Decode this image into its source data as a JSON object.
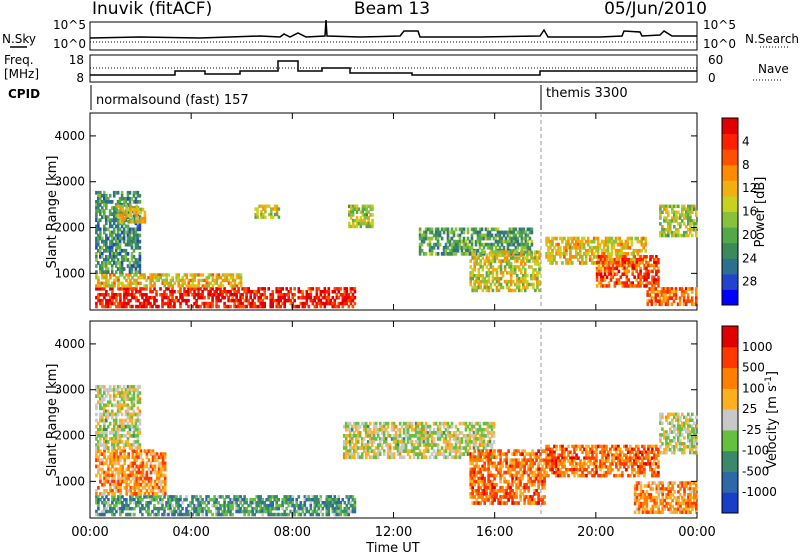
{
  "header": {
    "station": "Inuvik (fitACF)",
    "beam": "Beam 13",
    "date": "05/Jun/2010"
  },
  "noise_panel": {
    "left_label": "N.Sky",
    "right_label": "N.Search",
    "left_ticks": [
      "10^5",
      "10^0"
    ],
    "right_ticks": [
      "10^5",
      "10^0"
    ]
  },
  "freq_panel": {
    "left_label_line1": "Freq.",
    "left_label_line2": "[MHz]",
    "right_label": "Nave",
    "left_ticks": [
      "18",
      "8"
    ],
    "right_ticks": [
      "60",
      "0"
    ]
  },
  "cpid_panel": {
    "label": "CPID",
    "programs": [
      {
        "name": "normalsound (fast) 157",
        "start_hour": 0
      },
      {
        "name": "themis 3300",
        "start_hour": 18
      }
    ]
  },
  "colors": {
    "power_scale": [
      "#0000ff",
      "#2244cc",
      "#2e6e8e",
      "#3a8a5a",
      "#55a84a",
      "#88c23a",
      "#c8d020",
      "#f0b010",
      "#ff8c00",
      "#ff5000",
      "#ff2000",
      "#e00000"
    ],
    "velocity_scale": [
      "#1a3ec8",
      "#2f68a8",
      "#3a8a6a",
      "#66c040",
      "#c8c8c8",
      "#ffb020",
      "#ff7f00",
      "#ff3800",
      "#e00000"
    ]
  },
  "chart_data": [
    {
      "type": "heatmap",
      "title": "Power",
      "ylabel": "Slant Range [km]",
      "xlabel": "Time UT",
      "xlim_hours": [
        0,
        24
      ],
      "ylim": [
        200,
        4500
      ],
      "y_ticks": [
        1000,
        2000,
        3000,
        4000
      ],
      "x_ticks": [
        "00:00",
        "04:00",
        "08:00",
        "12:00",
        "16:00",
        "20:00",
        "00:00"
      ],
      "colorbar": {
        "label": "Power [dB]",
        "ticks": [
          "4",
          "8",
          "12",
          "16",
          "20",
          "24",
          "28"
        ],
        "range": [
          0,
          30
        ]
      },
      "regions": [
        {
          "t0": 0.2,
          "t1": 10.5,
          "r0": 250,
          "r1": 700,
          "level": 0.92
        },
        {
          "t0": 0.2,
          "t1": 6.0,
          "r0": 700,
          "r1": 1000,
          "level": 0.6
        },
        {
          "t0": 0.2,
          "t1": 2.0,
          "r0": 1000,
          "r1": 2800,
          "level": 0.3
        },
        {
          "t0": 1.0,
          "t1": 2.2,
          "r0": 2100,
          "r1": 2500,
          "level": 0.55
        },
        {
          "t0": 6.5,
          "t1": 7.5,
          "r0": 2200,
          "r1": 2500,
          "level": 0.55
        },
        {
          "t0": 10.2,
          "t1": 11.2,
          "r0": 2000,
          "r1": 2500,
          "level": 0.5
        },
        {
          "t0": 13.0,
          "t1": 17.5,
          "r0": 1400,
          "r1": 2000,
          "level": 0.35
        },
        {
          "t0": 15.0,
          "t1": 17.8,
          "r0": 600,
          "r1": 1500,
          "level": 0.55
        },
        {
          "t0": 18.0,
          "t1": 22.0,
          "r0": 1200,
          "r1": 1800,
          "level": 0.6
        },
        {
          "t0": 20.0,
          "t1": 22.5,
          "r0": 700,
          "r1": 1400,
          "level": 0.8
        },
        {
          "t0": 22.0,
          "t1": 24.0,
          "r0": 300,
          "r1": 700,
          "level": 0.75
        },
        {
          "t0": 22.5,
          "t1": 24.0,
          "r0": 1800,
          "r1": 2500,
          "level": 0.5
        }
      ]
    },
    {
      "type": "heatmap",
      "title": "Velocity",
      "ylabel": "Slant Range [km]",
      "xlabel": "Time UT",
      "xlim_hours": [
        0,
        24
      ],
      "ylim": [
        200,
        4500
      ],
      "y_ticks": [
        1000,
        2000,
        3000,
        4000
      ],
      "x_ticks": [
        "00:00",
        "04:00",
        "08:00",
        "12:00",
        "16:00",
        "20:00",
        "00:00"
      ],
      "colorbar": {
        "label": "Velocity [m s^-1]",
        "ticks": [
          "1000",
          "500",
          "100",
          "25",
          "-25",
          "-100",
          "-500",
          "-1000"
        ],
        "range": [
          -1000,
          1000
        ]
      },
      "regions": [
        {
          "t0": 0.2,
          "t1": 10.5,
          "r0": 250,
          "r1": 700,
          "level": 0.3
        },
        {
          "t0": 0.2,
          "t1": 3.0,
          "r0": 700,
          "r1": 1700,
          "level": 0.7
        },
        {
          "t0": 0.2,
          "t1": 2.0,
          "r0": 1700,
          "r1": 3100,
          "level": 0.5
        },
        {
          "t0": 10.0,
          "t1": 16.0,
          "r0": 1500,
          "r1": 2300,
          "level": 0.5
        },
        {
          "t0": 15.0,
          "t1": 18.0,
          "r0": 500,
          "r1": 1700,
          "level": 0.75
        },
        {
          "t0": 18.0,
          "t1": 22.5,
          "r0": 1100,
          "r1": 1800,
          "level": 0.75
        },
        {
          "t0": 21.5,
          "t1": 24.0,
          "r0": 300,
          "r1": 1000,
          "level": 0.7
        },
        {
          "t0": 22.5,
          "t1": 24.0,
          "r0": 1600,
          "r1": 2500,
          "level": 0.5
        }
      ]
    }
  ]
}
